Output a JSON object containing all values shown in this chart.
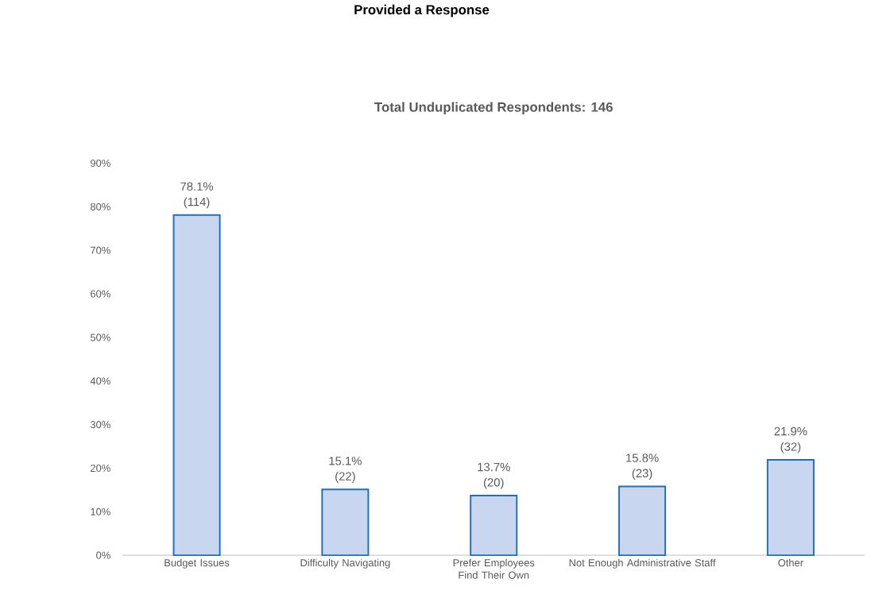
{
  "chart_data": {
    "type": "bar",
    "title": "Provided a Response",
    "subtitle": "Total Unduplicated Respondents: 146",
    "categories": [
      "Budget Issues",
      "Difficulty Navigating",
      "Prefer Employees Find Their Own",
      "Not Enough Administrative Staff",
      "Other"
    ],
    "values": [
      78.1,
      15.1,
      13.7,
      15.8,
      21.9
    ],
    "value_labels": [
      "78.1% (114)",
      "15.1% (22)",
      "13.7% (20)",
      "15.8% (23)",
      "21.9% (32)"
    ],
    "color": "#c9d6ef",
    "ylim": [
      0,
      90
    ],
    "yticks": [
      {
        "value": 0,
        "label": "0%"
      },
      {
        "value": 10,
        "label": "10%"
      },
      {
        "value": 20,
        "label": "20%"
      },
      {
        "value": 30,
        "label": "30%"
      },
      {
        "value": 40,
        "label": "40%"
      },
      {
        "value": 50,
        "label": "50%"
      },
      {
        "value": 60,
        "label": "60%"
      },
      {
        "value": 70,
        "label": "70%"
      },
      {
        "value": 80,
        "label": "80%"
      },
      {
        "value": 90,
        "label": "90%"
      }
    ],
    "grid": false
  }
}
